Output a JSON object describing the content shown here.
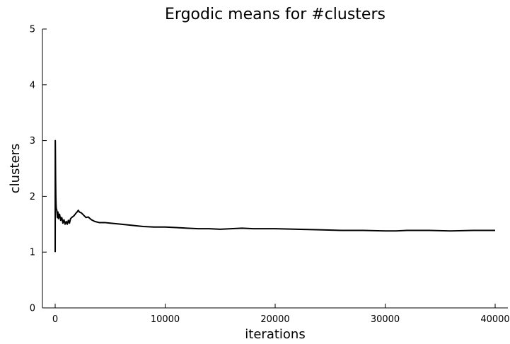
{
  "chart_data": {
    "type": "line",
    "title": "Ergodic means for #clusters",
    "xlabel": "iterations",
    "ylabel": "clusters",
    "xlim": [
      0,
      40000
    ],
    "ylim": [
      0,
      5
    ],
    "xticks": [
      0,
      10000,
      20000,
      30000,
      40000
    ],
    "yticks": [
      0,
      1,
      2,
      3,
      4,
      5
    ],
    "xtick_labels": [
      "0",
      "10000",
      "20000",
      "30000",
      "40000"
    ],
    "ytick_labels": [
      "0",
      "1",
      "2",
      "3",
      "4",
      "5"
    ],
    "grid": false,
    "legend": "none",
    "series": [
      {
        "color": "#000000",
        "x": [
          1,
          10,
          20,
          40,
          60,
          80,
          100,
          150,
          200,
          250,
          300,
          400,
          500,
          600,
          700,
          800,
          900,
          1000,
          1100,
          1200,
          1300,
          1400,
          1500,
          1700,
          1900,
          2000,
          2100,
          2200,
          2400,
          2600,
          2800,
          3000,
          3300,
          3600,
          4000,
          4500,
          5000,
          5500,
          6000,
          7000,
          8000,
          9000,
          10000,
          11000,
          12000,
          13000,
          14000,
          15000,
          16000,
          17000,
          18000,
          19000,
          20000,
          22000,
          24000,
          26000,
          28000,
          30000,
          31000,
          32000,
          34000,
          36000,
          38000,
          40000
        ],
        "y": [
          1.0,
          3.0,
          2.8,
          2.3,
          2.0,
          1.85,
          1.78,
          1.75,
          1.62,
          1.72,
          1.6,
          1.68,
          1.57,
          1.62,
          1.52,
          1.58,
          1.5,
          1.55,
          1.5,
          1.57,
          1.52,
          1.6,
          1.62,
          1.65,
          1.7,
          1.72,
          1.75,
          1.72,
          1.7,
          1.66,
          1.62,
          1.63,
          1.58,
          1.55,
          1.53,
          1.53,
          1.52,
          1.51,
          1.5,
          1.48,
          1.46,
          1.45,
          1.45,
          1.44,
          1.43,
          1.42,
          1.42,
          1.41,
          1.42,
          1.43,
          1.42,
          1.42,
          1.42,
          1.41,
          1.4,
          1.39,
          1.39,
          1.38,
          1.38,
          1.39,
          1.39,
          1.38,
          1.39,
          1.39
        ]
      }
    ]
  }
}
